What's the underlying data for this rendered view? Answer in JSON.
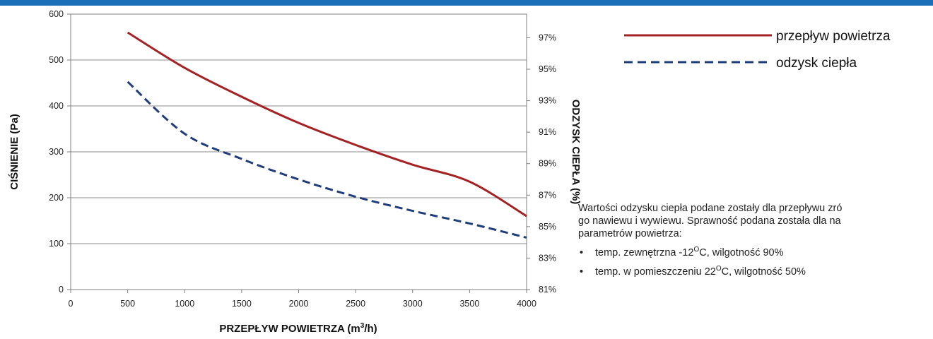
{
  "chart_data": {
    "type": "line",
    "xlabel": "PRZEPŁYW POWIETRZA (m³/h)",
    "xlabel_parts": [
      "PRZEPŁYW POWIETRZA (m",
      "3",
      "/h)"
    ],
    "ylabel": "CIŚNIENIE (Pa)",
    "y2label": "ODZYSK CIEPŁA (%)",
    "xlim": [
      0,
      4000
    ],
    "ylim": [
      0,
      600
    ],
    "y2lim": [
      81,
      98.5
    ],
    "x_ticks": [
      "0",
      "500",
      "1000",
      "1500",
      "2000",
      "2500",
      "3000",
      "3500",
      "4000"
    ],
    "y_ticks": [
      "0",
      "100",
      "200",
      "300",
      "400",
      "500",
      "600"
    ],
    "y2_ticks": [
      "81%",
      "83%",
      "85%",
      "87%",
      "89%",
      "91%",
      "93%",
      "95%",
      "97%"
    ],
    "grid": true,
    "legend_position": "top-right",
    "series": [
      {
        "name": "przepływ powietrza",
        "axis": "left",
        "color": "#a52224",
        "style": "solid",
        "x": [
          500,
          1000,
          1500,
          2000,
          2500,
          3000,
          3500,
          4000
        ],
        "y": [
          560,
          483,
          420,
          363,
          315,
          272,
          235,
          160
        ]
      },
      {
        "name": "odzysk ciepła",
        "axis": "right",
        "color": "#1f3d7a",
        "style": "dashed",
        "x": [
          500,
          1000,
          1500,
          2000,
          2500,
          3000,
          3500,
          4000
        ],
        "y": [
          94.2,
          90.9,
          89.3,
          88.0,
          86.9,
          86.0,
          85.2,
          84.3
        ]
      }
    ]
  },
  "note": {
    "text": "Wartości odzysku ciepła podane zostały dla przepływu zró go nawiewu i wywiewu. Sprawność podana została dla na parametrów powietrza:",
    "lines": [
      "Wartości odzysku ciepła podane zostały dla przepływu zró",
      "go nawiewu i wywiewu. Sprawność podana została dla na",
      "parametrów powietrza:"
    ],
    "bullets": [
      {
        "before": "temp. zewnętrzna -12",
        "sup": "O",
        "after": "C, wilgotność 90%"
      },
      {
        "before": "temp. w pomieszczeniu 22",
        "sup": "O",
        "after": "C, wilgotność 50%"
      }
    ]
  },
  "colors": {
    "top_bar": "#1b6fb8",
    "grid": "#8c8c8c",
    "axis": "#7f7f7f"
  }
}
